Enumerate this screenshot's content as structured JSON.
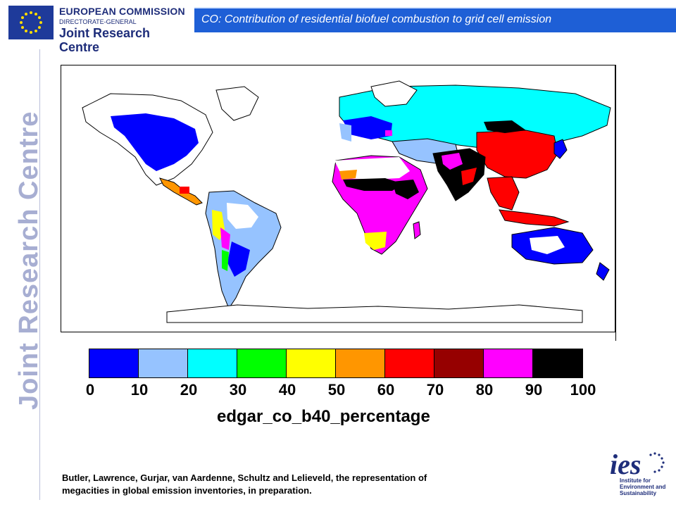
{
  "header": {
    "org_line1": "EUROPEAN COMMISSION",
    "org_line2": "DIRECTORATE-GENERAL",
    "org_line3": "Joint Research Centre",
    "title": "CO: Contribution of residential biofuel combustion to grid cell emission"
  },
  "side_label": "Joint Research Centre",
  "colorbar": {
    "colors": [
      "#0000ff",
      "#96c3ff",
      "#00ffff",
      "#00ff00",
      "#ffff00",
      "#ff9600",
      "#ff0000",
      "#960000",
      "#ff00ff",
      "#000000"
    ],
    "ticks": [
      "0",
      "10",
      "20",
      "30",
      "40",
      "50",
      "60",
      "70",
      "80",
      "90",
      "100"
    ],
    "variable": "edgar_co_b40_percentage"
  },
  "map": {
    "accent_colors": {
      "ocean": "#ffffff",
      "outline": "#000000"
    }
  },
  "citation": {
    "line1": "Butler, Lawrence, Gurjar, van Aardenne, Schultz and Lelieveld, the representation of",
    "line2": "megacities in global emission inventories, in preparation."
  },
  "logo": {
    "mark": "ies",
    "line1": "Institute for",
    "line2": "Environment and",
    "line3": "Sustainability"
  }
}
